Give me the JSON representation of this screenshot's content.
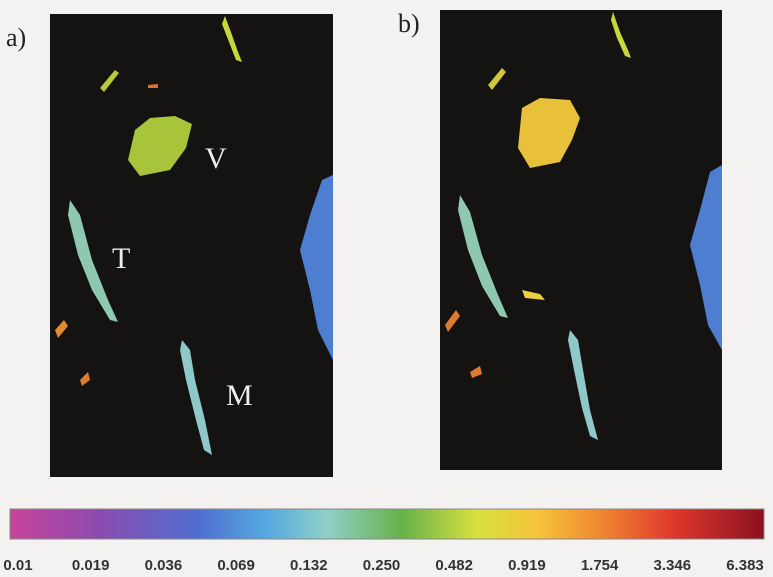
{
  "panels": [
    {
      "label": "a)",
      "annotations": [
        "V",
        "T",
        "M"
      ]
    },
    {
      "label": "b)"
    }
  ],
  "colorbar": {
    "tick_labels": [
      "0.01",
      "0.019",
      "0.036",
      "0.069",
      "0.132",
      "0.250",
      "0.482",
      "0.919",
      "1.754",
      "3.346",
      "6.383"
    ]
  }
}
